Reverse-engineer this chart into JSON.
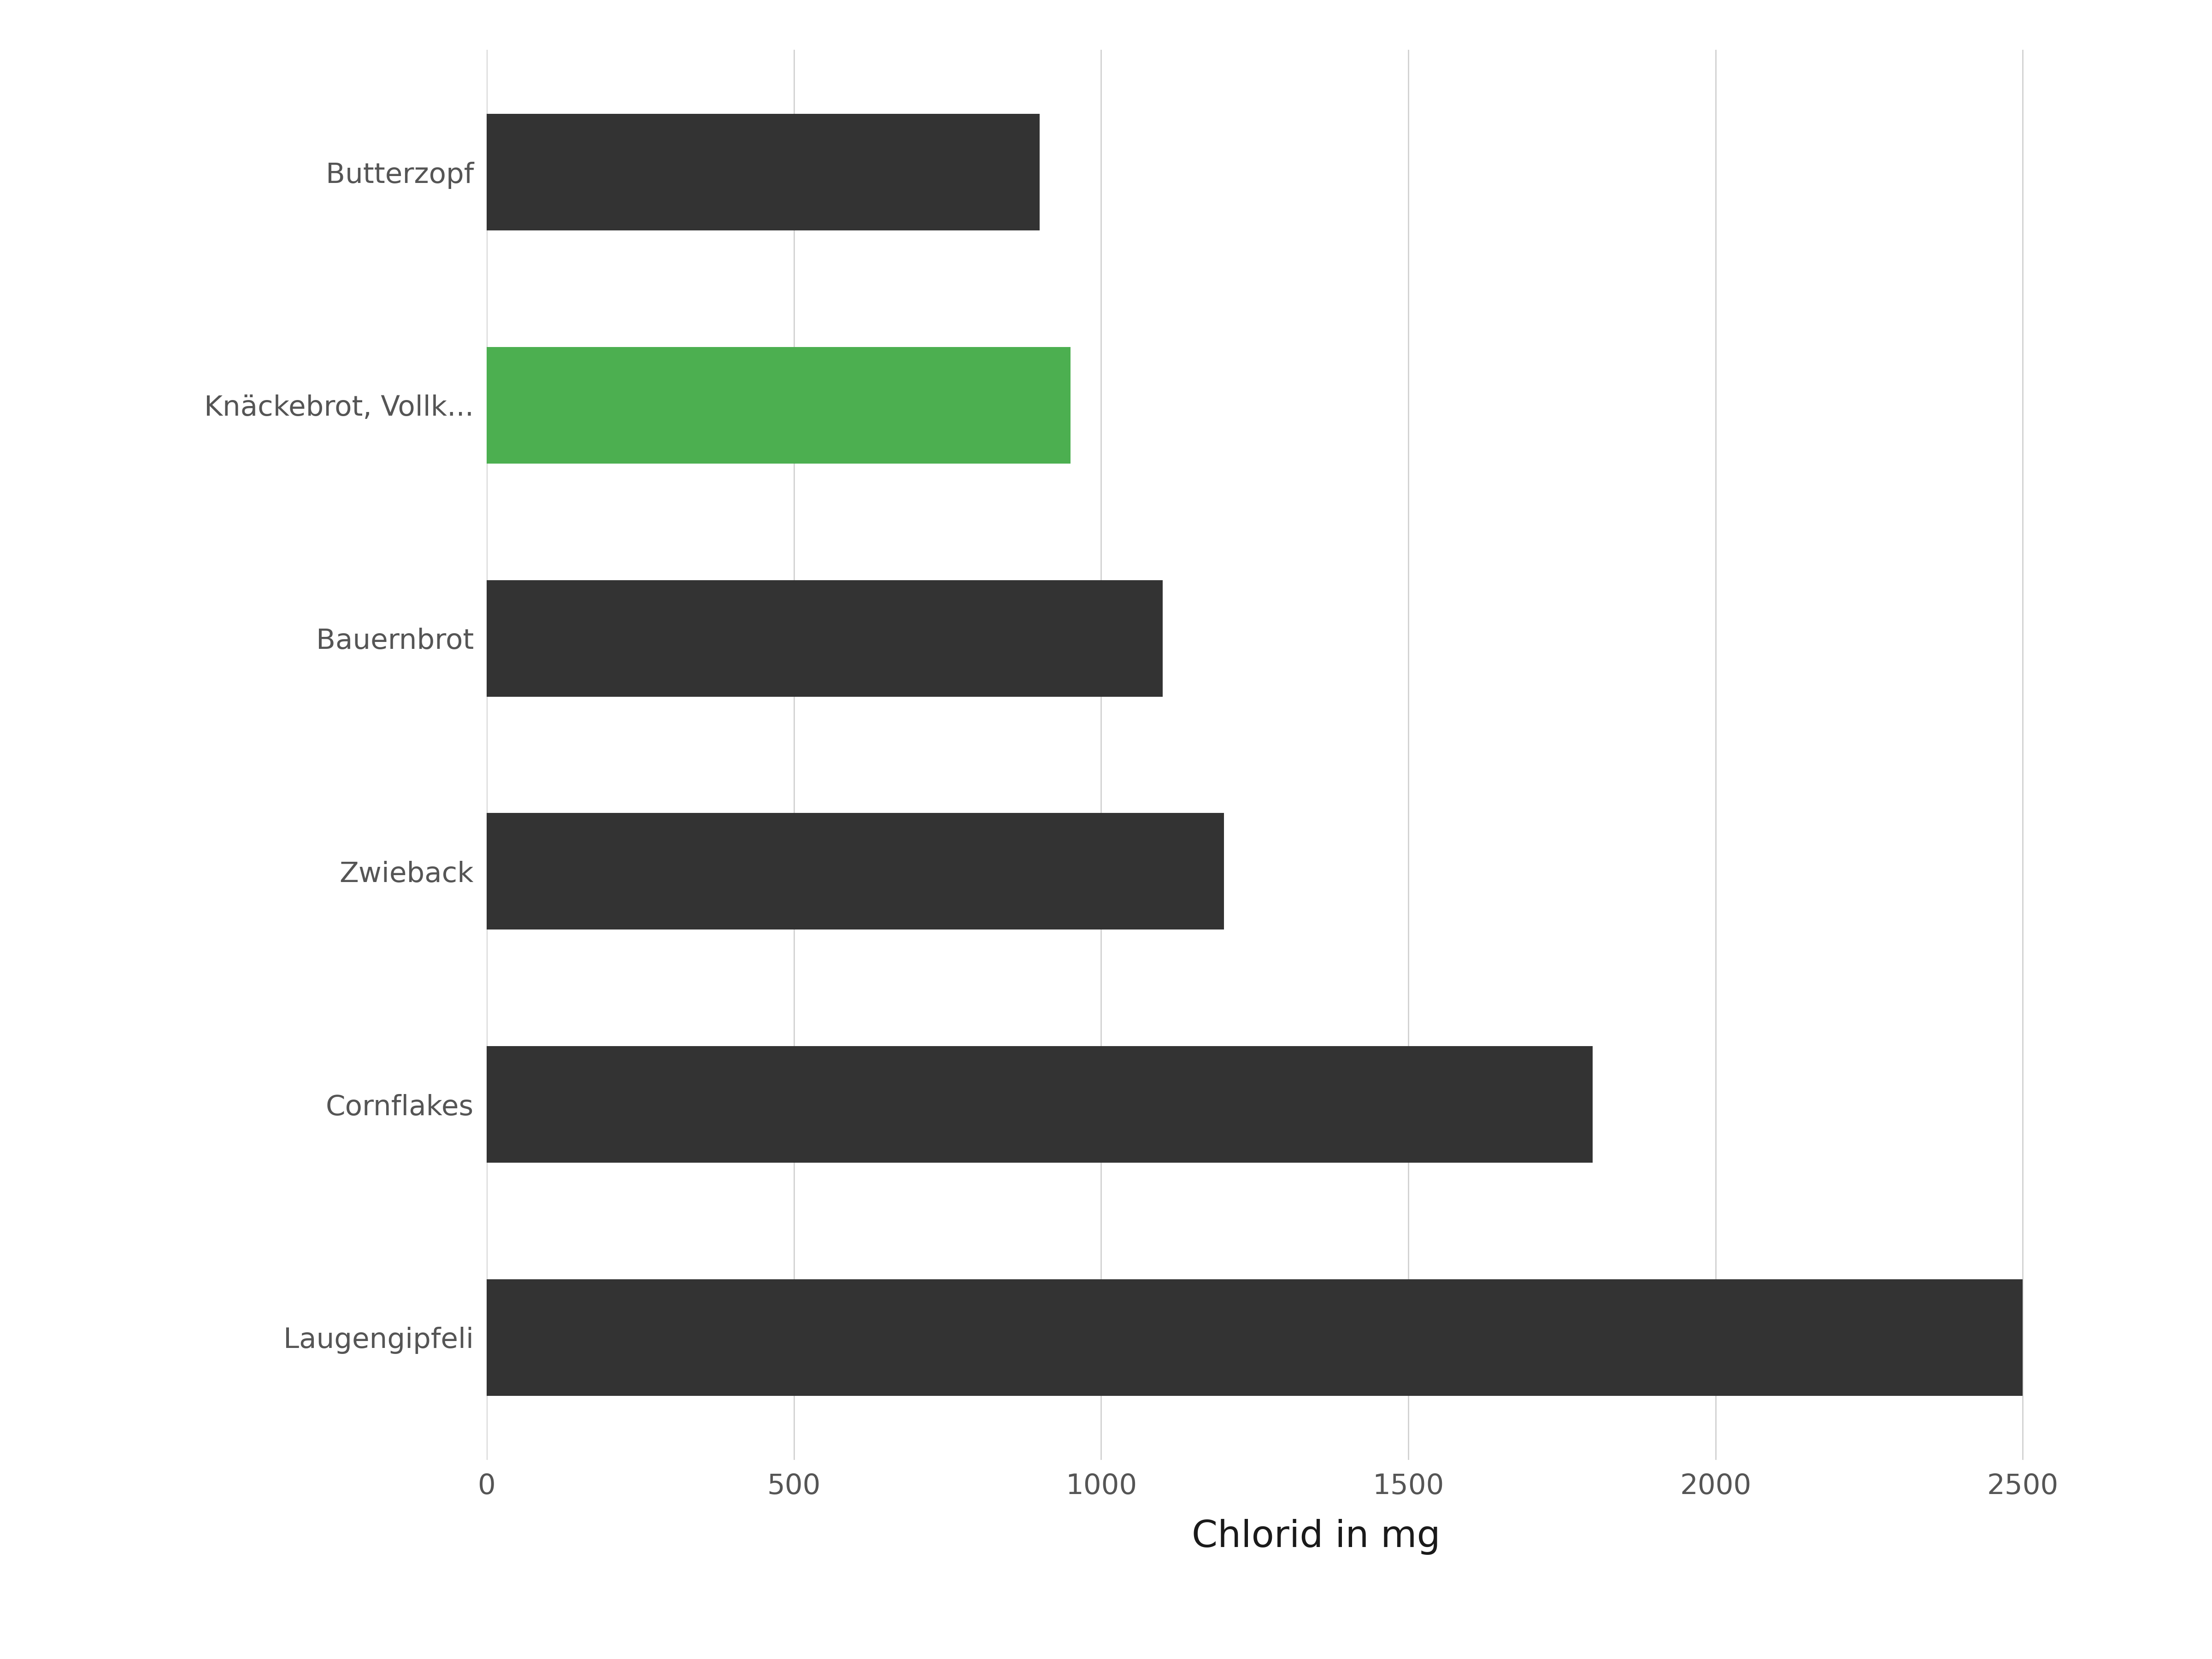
{
  "categories": [
    "Laugengipfeli",
    "Cornflakes",
    "Zwieback",
    "Bauernbrot",
    "Knäckebrot, Vollk...",
    "Butterzopf"
  ],
  "values": [
    2500,
    1800,
    1200,
    1100,
    950,
    900
  ],
  "bar_colors": [
    "#333333",
    "#333333",
    "#333333",
    "#333333",
    "#4caf50",
    "#333333"
  ],
  "xlabel": "Chlorid in mg",
  "xlim": [
    0,
    2700
  ],
  "xticks": [
    0,
    500,
    1000,
    1500,
    2000,
    2500
  ],
  "xlabel_fontsize": 58,
  "xtick_fontsize": 44,
  "ytick_fontsize": 44,
  "background_color": "#ffffff",
  "grid_color": "#d0d0d0",
  "text_color": "#555555",
  "bar_height": 0.5,
  "figure_width": 48.0,
  "figure_height": 36.0,
  "bar_dark_color": "#333333",
  "xlabel_color": "#1a1a1a"
}
